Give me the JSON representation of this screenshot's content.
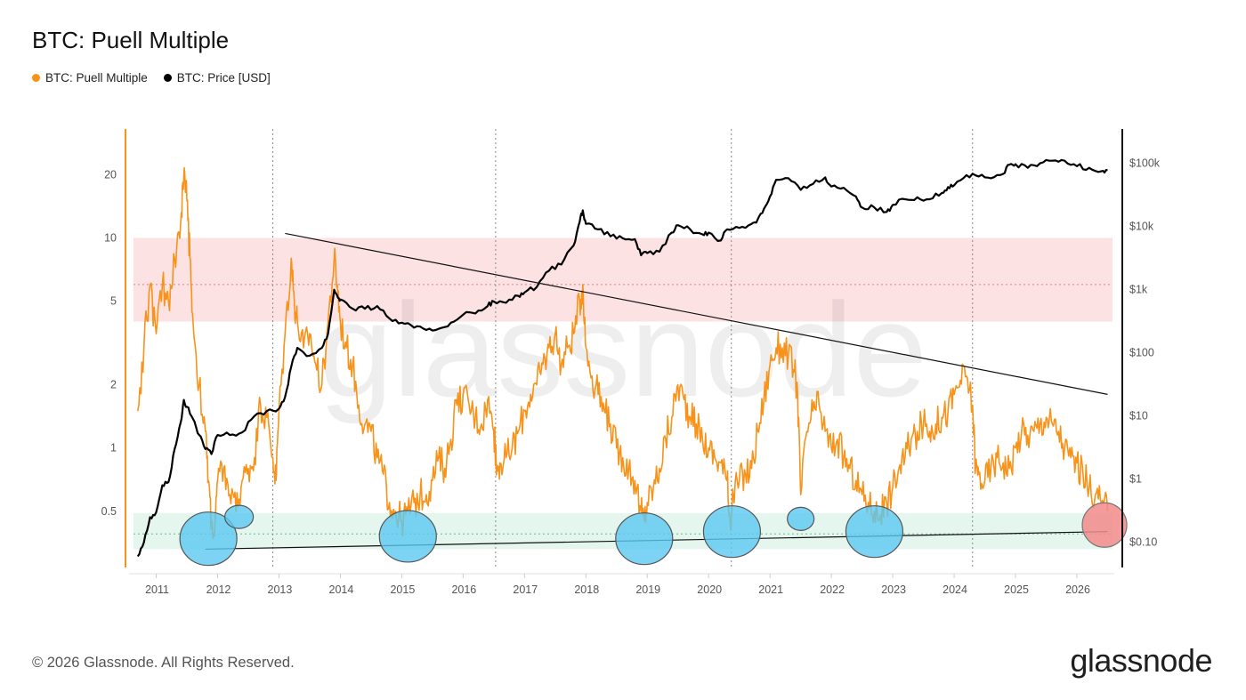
{
  "title": "BTC: Puell Multiple",
  "legend": [
    {
      "label": "BTC: Puell Multiple",
      "color": "#f7931a"
    },
    {
      "label": "BTC: Price [USD]",
      "color": "#000000"
    }
  ],
  "watermark": "glassnode",
  "footer": "© 2026 Glassnode. All Rights Reserved.",
  "brand": "glassnode",
  "chart_data": {
    "type": "line",
    "x_ticks": [
      "2011",
      "2012",
      "2013",
      "2014",
      "2015",
      "2016",
      "2017",
      "2018",
      "2019",
      "2020",
      "2021",
      "2022",
      "2023",
      "2024",
      "2025",
      "2026"
    ],
    "left_axis": {
      "scale": "log",
      "ticks": [
        "20",
        "10",
        "5",
        "2",
        "1",
        "0.5"
      ],
      "ylim": [
        0.27,
        33
      ]
    },
    "right_axis": {
      "scale": "log",
      "ticks": [
        "$100k",
        "$10k",
        "$1k",
        "$100",
        "$10",
        "$1",
        "$0.10"
      ],
      "ylim": [
        0.04,
        350000
      ]
    },
    "halving_years": [
      2012.9,
      2016.53,
      2020.37,
      2024.3
    ],
    "zones": {
      "overheated": {
        "from": 4,
        "to": 10,
        "mid": 6,
        "color": "#fde2e4"
      },
      "undervalued": {
        "from": 0.33,
        "to": 0.49,
        "mid": 0.39,
        "color": "#e4f6ee"
      }
    },
    "series": [
      {
        "name": "BTC: Puell Multiple",
        "color": "#f7931a",
        "x": [
          2010.7,
          2010.8,
          2010.9,
          2011.0,
          2011.1,
          2011.2,
          2011.3,
          2011.4,
          2011.45,
          2011.5,
          2011.55,
          2011.6,
          2011.7,
          2011.8,
          2011.85,
          2011.9,
          2011.95,
          2012.0,
          2012.1,
          2012.2,
          2012.3,
          2012.4,
          2012.5,
          2012.6,
          2012.7,
          2012.8,
          2012.9,
          2012.95,
          2013.0,
          2013.1,
          2013.2,
          2013.25,
          2013.3,
          2013.4,
          2013.5,
          2013.6,
          2013.7,
          2013.8,
          2013.9,
          2013.95,
          2014.0,
          2014.1,
          2014.2,
          2014.3,
          2014.4,
          2014.5,
          2014.6,
          2014.7,
          2014.8,
          2014.9,
          2015.0,
          2015.1,
          2015.2,
          2015.3,
          2015.4,
          2015.5,
          2015.6,
          2015.7,
          2015.8,
          2015.9,
          2016.0,
          2016.1,
          2016.2,
          2016.3,
          2016.4,
          2016.5,
          2016.55,
          2016.6,
          2016.7,
          2016.8,
          2016.9,
          2017.0,
          2017.1,
          2017.2,
          2017.3,
          2017.4,
          2017.5,
          2017.6,
          2017.7,
          2017.8,
          2017.9,
          2017.95,
          2018.0,
          2018.1,
          2018.2,
          2018.3,
          2018.4,
          2018.5,
          2018.6,
          2018.7,
          2018.8,
          2018.9,
          2018.95,
          2019.0,
          2019.1,
          2019.2,
          2019.3,
          2019.4,
          2019.5,
          2019.6,
          2019.7,
          2019.8,
          2019.9,
          2020.0,
          2020.1,
          2020.2,
          2020.3,
          2020.35,
          2020.4,
          2020.5,
          2020.6,
          2020.7,
          2020.8,
          2020.9,
          2021.0,
          2021.1,
          2021.2,
          2021.3,
          2021.4,
          2021.45,
          2021.5,
          2021.6,
          2021.7,
          2021.8,
          2021.9,
          2022.0,
          2022.1,
          2022.2,
          2022.3,
          2022.4,
          2022.5,
          2022.6,
          2022.7,
          2022.8,
          2022.9,
          2023.0,
          2023.1,
          2023.2,
          2023.3,
          2023.4,
          2023.5,
          2023.6,
          2023.7,
          2023.8,
          2023.9,
          2024.0,
          2024.1,
          2024.2,
          2024.3,
          2024.35,
          2024.4,
          2024.5,
          2024.6,
          2024.7,
          2024.8,
          2024.9,
          2025.0,
          2025.1,
          2025.2,
          2025.3,
          2025.4,
          2025.5,
          2025.6,
          2025.7,
          2025.8,
          2025.9,
          2026.0,
          2026.1,
          2026.2,
          2026.3,
          2026.4,
          2026.5
        ],
        "y": [
          1.5,
          3,
          6,
          3.5,
          6,
          5,
          8,
          12,
          20,
          15,
          8,
          4,
          2,
          1.2,
          0.7,
          0.45,
          0.38,
          0.7,
          0.8,
          0.6,
          0.5,
          0.7,
          0.8,
          0.9,
          1.6,
          1.4,
          0.9,
          0.7,
          1.5,
          3.5,
          8,
          5,
          4,
          3,
          3.5,
          2.5,
          2,
          4,
          8,
          6,
          4,
          3,
          2.5,
          1.6,
          1.3,
          1.2,
          0.9,
          0.75,
          0.55,
          0.5,
          0.45,
          0.5,
          0.55,
          0.6,
          0.6,
          0.7,
          0.9,
          0.8,
          1.1,
          1.6,
          1.8,
          1.6,
          1.4,
          1.3,
          1.7,
          1.2,
          0.8,
          0.85,
          0.9,
          1.0,
          1.2,
          1.5,
          1.8,
          2.0,
          2.5,
          3.0,
          3.5,
          2.5,
          3.0,
          3.5,
          5,
          6,
          3,
          2.2,
          1.8,
          1.5,
          1.3,
          1.0,
          0.9,
          0.8,
          0.7,
          0.5,
          0.45,
          0.55,
          0.65,
          0.8,
          1.1,
          1.4,
          2.0,
          1.7,
          1.4,
          1.3,
          1.1,
          1.0,
          0.9,
          0.85,
          0.7,
          0.45,
          0.6,
          0.7,
          0.75,
          0.8,
          1.2,
          1.7,
          2.5,
          3,
          3,
          2.8,
          2.3,
          1.8,
          0.6,
          1.2,
          1.5,
          1.6,
          1.2,
          1.0,
          1.1,
          0.9,
          0.8,
          0.7,
          0.6,
          0.55,
          0.5,
          0.48,
          0.55,
          0.65,
          0.8,
          0.9,
          1.1,
          1.2,
          1.3,
          1.2,
          1.3,
          1.4,
          1.5,
          1.8,
          2.1,
          2.2,
          1.6,
          0.8,
          0.75,
          0.7,
          0.8,
          0.9,
          0.85,
          0.8,
          1.0,
          1.2,
          1.15,
          1.2,
          1.3,
          1.4,
          1.3,
          1.2,
          1.0,
          0.9,
          0.85,
          0.75,
          0.65,
          0.6,
          0.55,
          0.5
        ]
      },
      {
        "name": "BTC: Price [USD]",
        "color": "#000000",
        "x": [
          2010.7,
          2010.8,
          2010.9,
          2011.0,
          2011.1,
          2011.2,
          2011.3,
          2011.4,
          2011.45,
          2011.5,
          2011.6,
          2011.7,
          2011.8,
          2011.9,
          2012.0,
          2012.2,
          2012.4,
          2012.6,
          2012.8,
          2013.0,
          2013.1,
          2013.2,
          2013.3,
          2013.5,
          2013.7,
          2013.8,
          2013.9,
          2013.95,
          2014.0,
          2014.2,
          2014.4,
          2014.6,
          2014.8,
          2015.0,
          2015.2,
          2015.4,
          2015.6,
          2015.8,
          2016.0,
          2016.2,
          2016.4,
          2016.5,
          2016.7,
          2016.9,
          2017.0,
          2017.2,
          2017.4,
          2017.6,
          2017.8,
          2017.9,
          2017.95,
          2018.0,
          2018.2,
          2018.4,
          2018.6,
          2018.8,
          2018.9,
          2019.0,
          2019.2,
          2019.4,
          2019.5,
          2019.7,
          2019.9,
          2020.0,
          2020.2,
          2020.3,
          2020.5,
          2020.7,
          2020.8,
          2020.9,
          2021.0,
          2021.1,
          2021.3,
          2021.5,
          2021.7,
          2021.9,
          2022.0,
          2022.2,
          2022.4,
          2022.5,
          2022.7,
          2022.9,
          2023.0,
          2023.2,
          2023.4,
          2023.6,
          2023.8,
          2023.9,
          2024.0,
          2024.2,
          2024.4,
          2024.6,
          2024.8,
          2024.9,
          2025.0,
          2025.2,
          2025.4,
          2025.6,
          2025.8,
          2026.0,
          2026.2,
          2026.4,
          2026.5
        ],
        "y": [
          0.06,
          0.1,
          0.25,
          0.3,
          0.8,
          0.9,
          3,
          8,
          18,
          14,
          9,
          5,
          3,
          2.5,
          5,
          5,
          5.5,
          10,
          12,
          13,
          20,
          60,
          120,
          90,
          120,
          200,
          1000,
          800,
          700,
          500,
          500,
          550,
          350,
          300,
          250,
          230,
          240,
          300,
          400,
          420,
          550,
          650,
          620,
          800,
          900,
          1100,
          2000,
          2500,
          5000,
          12000,
          18000,
          11000,
          9000,
          7000,
          6500,
          6300,
          3500,
          3800,
          4000,
          8000,
          10500,
          9000,
          7500,
          8000,
          6000,
          9000,
          9500,
          11000,
          13000,
          19000,
          30000,
          55000,
          58000,
          38000,
          47000,
          60000,
          43000,
          41000,
          30000,
          20000,
          20000,
          17000,
          22000,
          27000,
          29000,
          27000,
          34000,
          42000,
          45000,
          65000,
          62000,
          58000,
          68000,
          95000,
          97000,
          85000,
          100000,
          110000,
          110000,
          90000,
          85000,
          75000,
          78000
        ]
      }
    ],
    "annotations": {
      "resistance_trend": {
        "from": {
          "x": 2013.1,
          "y": 10.5
        },
        "to": {
          "x": 2026.5,
          "y": 1.8
        }
      },
      "support_trend": {
        "from": {
          "x": 2011.8,
          "y": 0.33
        },
        "to": {
          "x": 2026.5,
          "y": 0.4
        }
      },
      "bottom_markers": [
        {
          "x": 2011.85,
          "y": 0.37
        },
        {
          "x": 2012.35,
          "y": 0.47
        },
        {
          "x": 2015.1,
          "y": 0.38
        },
        {
          "x": 2018.95,
          "y": 0.37
        },
        {
          "x": 2020.38,
          "y": 0.4
        },
        {
          "x": 2021.5,
          "y": 0.46
        },
        {
          "x": 2022.7,
          "y": 0.4
        }
      ],
      "current_marker": {
        "x": 2026.45,
        "y": 0.43
      }
    }
  }
}
